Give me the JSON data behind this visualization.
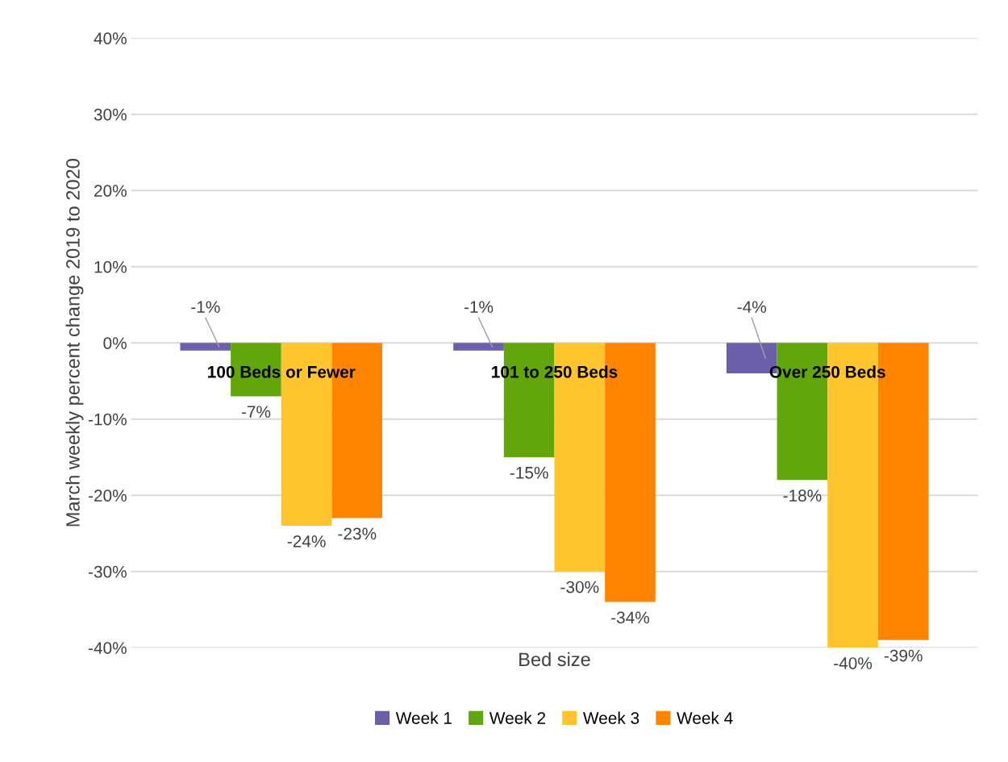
{
  "chart_data": {
    "type": "bar",
    "xlabel": "Bed size",
    "ylabel": "March weekly percent change 2019 to 2020",
    "categories": [
      "100 Beds or Fewer",
      "101 to 250 Beds",
      "Over 250 Beds"
    ],
    "series": [
      {
        "name": "Week 1",
        "color": "#6a5fa8",
        "values": [
          -1,
          -1,
          -4
        ],
        "value_labels": [
          "-1%",
          "-1%",
          "-4%"
        ]
      },
      {
        "name": "Week 2",
        "color": "#62a60c",
        "values": [
          -7,
          -15,
          -18
        ],
        "value_labels": [
          "-7%",
          "-15%",
          "-18%"
        ]
      },
      {
        "name": "Week 3",
        "color": "#ffc42e",
        "values": [
          -24,
          -30,
          -40
        ],
        "value_labels": [
          "-24%",
          "-30%",
          "-40%"
        ]
      },
      {
        "name": "Week 4",
        "color": "#ff8400",
        "values": [
          -23,
          -34,
          -39
        ],
        "value_labels": [
          "-23%",
          "-34%",
          "-39%"
        ]
      }
    ],
    "ylim": [
      -40,
      40
    ],
    "yticks": [
      {
        "value": -40,
        "label": "-40%"
      },
      {
        "value": -30,
        "label": "-30%"
      },
      {
        "value": -20,
        "label": "-20%"
      },
      {
        "value": -10,
        "label": "-10%"
      },
      {
        "value": 0,
        "label": "0%"
      },
      {
        "value": 10,
        "label": "10%"
      },
      {
        "value": 20,
        "label": "20%"
      },
      {
        "value": 30,
        "label": "30%"
      },
      {
        "value": 40,
        "label": "40%"
      }
    ],
    "grid": "y",
    "legend": "bottom"
  }
}
